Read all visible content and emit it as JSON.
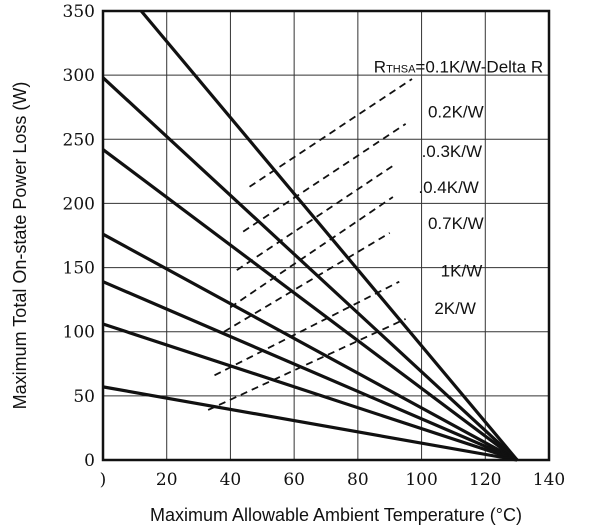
{
  "chart_data": {
    "type": "line",
    "xlabel": "Maximum Allowable Ambient Temperature (°C)",
    "ylabel": "Maximum Total On-state Power Loss (W)",
    "xlim": [
      0,
      140
    ],
    "ylim": [
      0,
      350
    ],
    "x_ticks": [
      0,
      20,
      40,
      60,
      80,
      100,
      120,
      140
    ],
    "x_tick_labels": [
      ")",
      "20",
      "40",
      "60",
      "80",
      "100",
      "120",
      "140"
    ],
    "y_ticks": [
      0,
      50,
      100,
      150,
      200,
      250,
      300,
      350
    ],
    "y_tick_labels": [
      "0",
      "50",
      "100",
      "150",
      "200",
      "250",
      "300",
      "350"
    ],
    "grid": true,
    "series": [
      {
        "name": "0.1K/W-Delta R",
        "x": [
          12,
          130
        ],
        "y": [
          350,
          0
        ]
      },
      {
        "name": "0.2K/W",
        "x": [
          0,
          130
        ],
        "y": [
          298,
          0
        ]
      },
      {
        "name": "0.3K/W",
        "x": [
          0,
          130
        ],
        "y": [
          242,
          0
        ]
      },
      {
        "name": "0.4K/W",
        "x": [
          0,
          130
        ],
        "y": [
          176,
          0
        ]
      },
      {
        "name": "0.7K/W",
        "x": [
          0,
          130
        ],
        "y": [
          139,
          0
        ]
      },
      {
        "name": "1K/W",
        "x": [
          0,
          130
        ],
        "y": [
          106,
          0
        ]
      },
      {
        "name": "2K/W",
        "x": [
          0,
          130
        ],
        "y": [
          57,
          0
        ]
      }
    ],
    "annotation_lines": [
      {
        "x": [
          46,
          97
        ],
        "y": [
          213,
          297
        ]
      },
      {
        "x": [
          44,
          95
        ],
        "y": [
          178,
          262
        ]
      },
      {
        "x": [
          42,
          92
        ],
        "y": [
          148,
          231
        ]
      },
      {
        "x": [
          40,
          91
        ],
        "y": [
          119,
          205
        ]
      },
      {
        "x": [
          38,
          90
        ],
        "y": [
          100,
          177
        ]
      },
      {
        "x": [
          35,
          93
        ],
        "y": [
          66,
          139
        ]
      },
      {
        "x": [
          33,
          95
        ],
        "y": [
          39,
          110
        ]
      }
    ],
    "annotations": [
      {
        "prefix": "R",
        "subscript": "THSA",
        "text": "=0.1K/W-Delta R",
        "x": 85,
        "y": 302
      },
      {
        "prefix": "",
        "subscript": "",
        "text": "0.2K/W",
        "x": 102,
        "y": 267
      },
      {
        "prefix": "",
        "subscript": "",
        "text": ".0.3K/W",
        "x": 100,
        "y": 236
      },
      {
        "prefix": "",
        "subscript": "",
        "text": ".0.4K/W",
        "x": 99,
        "y": 208
      },
      {
        "prefix": "",
        "subscript": "",
        "text": "0.7K/W",
        "x": 102,
        "y": 180
      },
      {
        "prefix": "",
        "subscript": "",
        "text": "1K/W",
        "x": 106,
        "y": 143
      },
      {
        "prefix": "",
        "subscript": "",
        "text": "2K/W",
        "x": 104,
        "y": 114
      }
    ],
    "line_color": "#111111",
    "grid_color": "#333333"
  }
}
